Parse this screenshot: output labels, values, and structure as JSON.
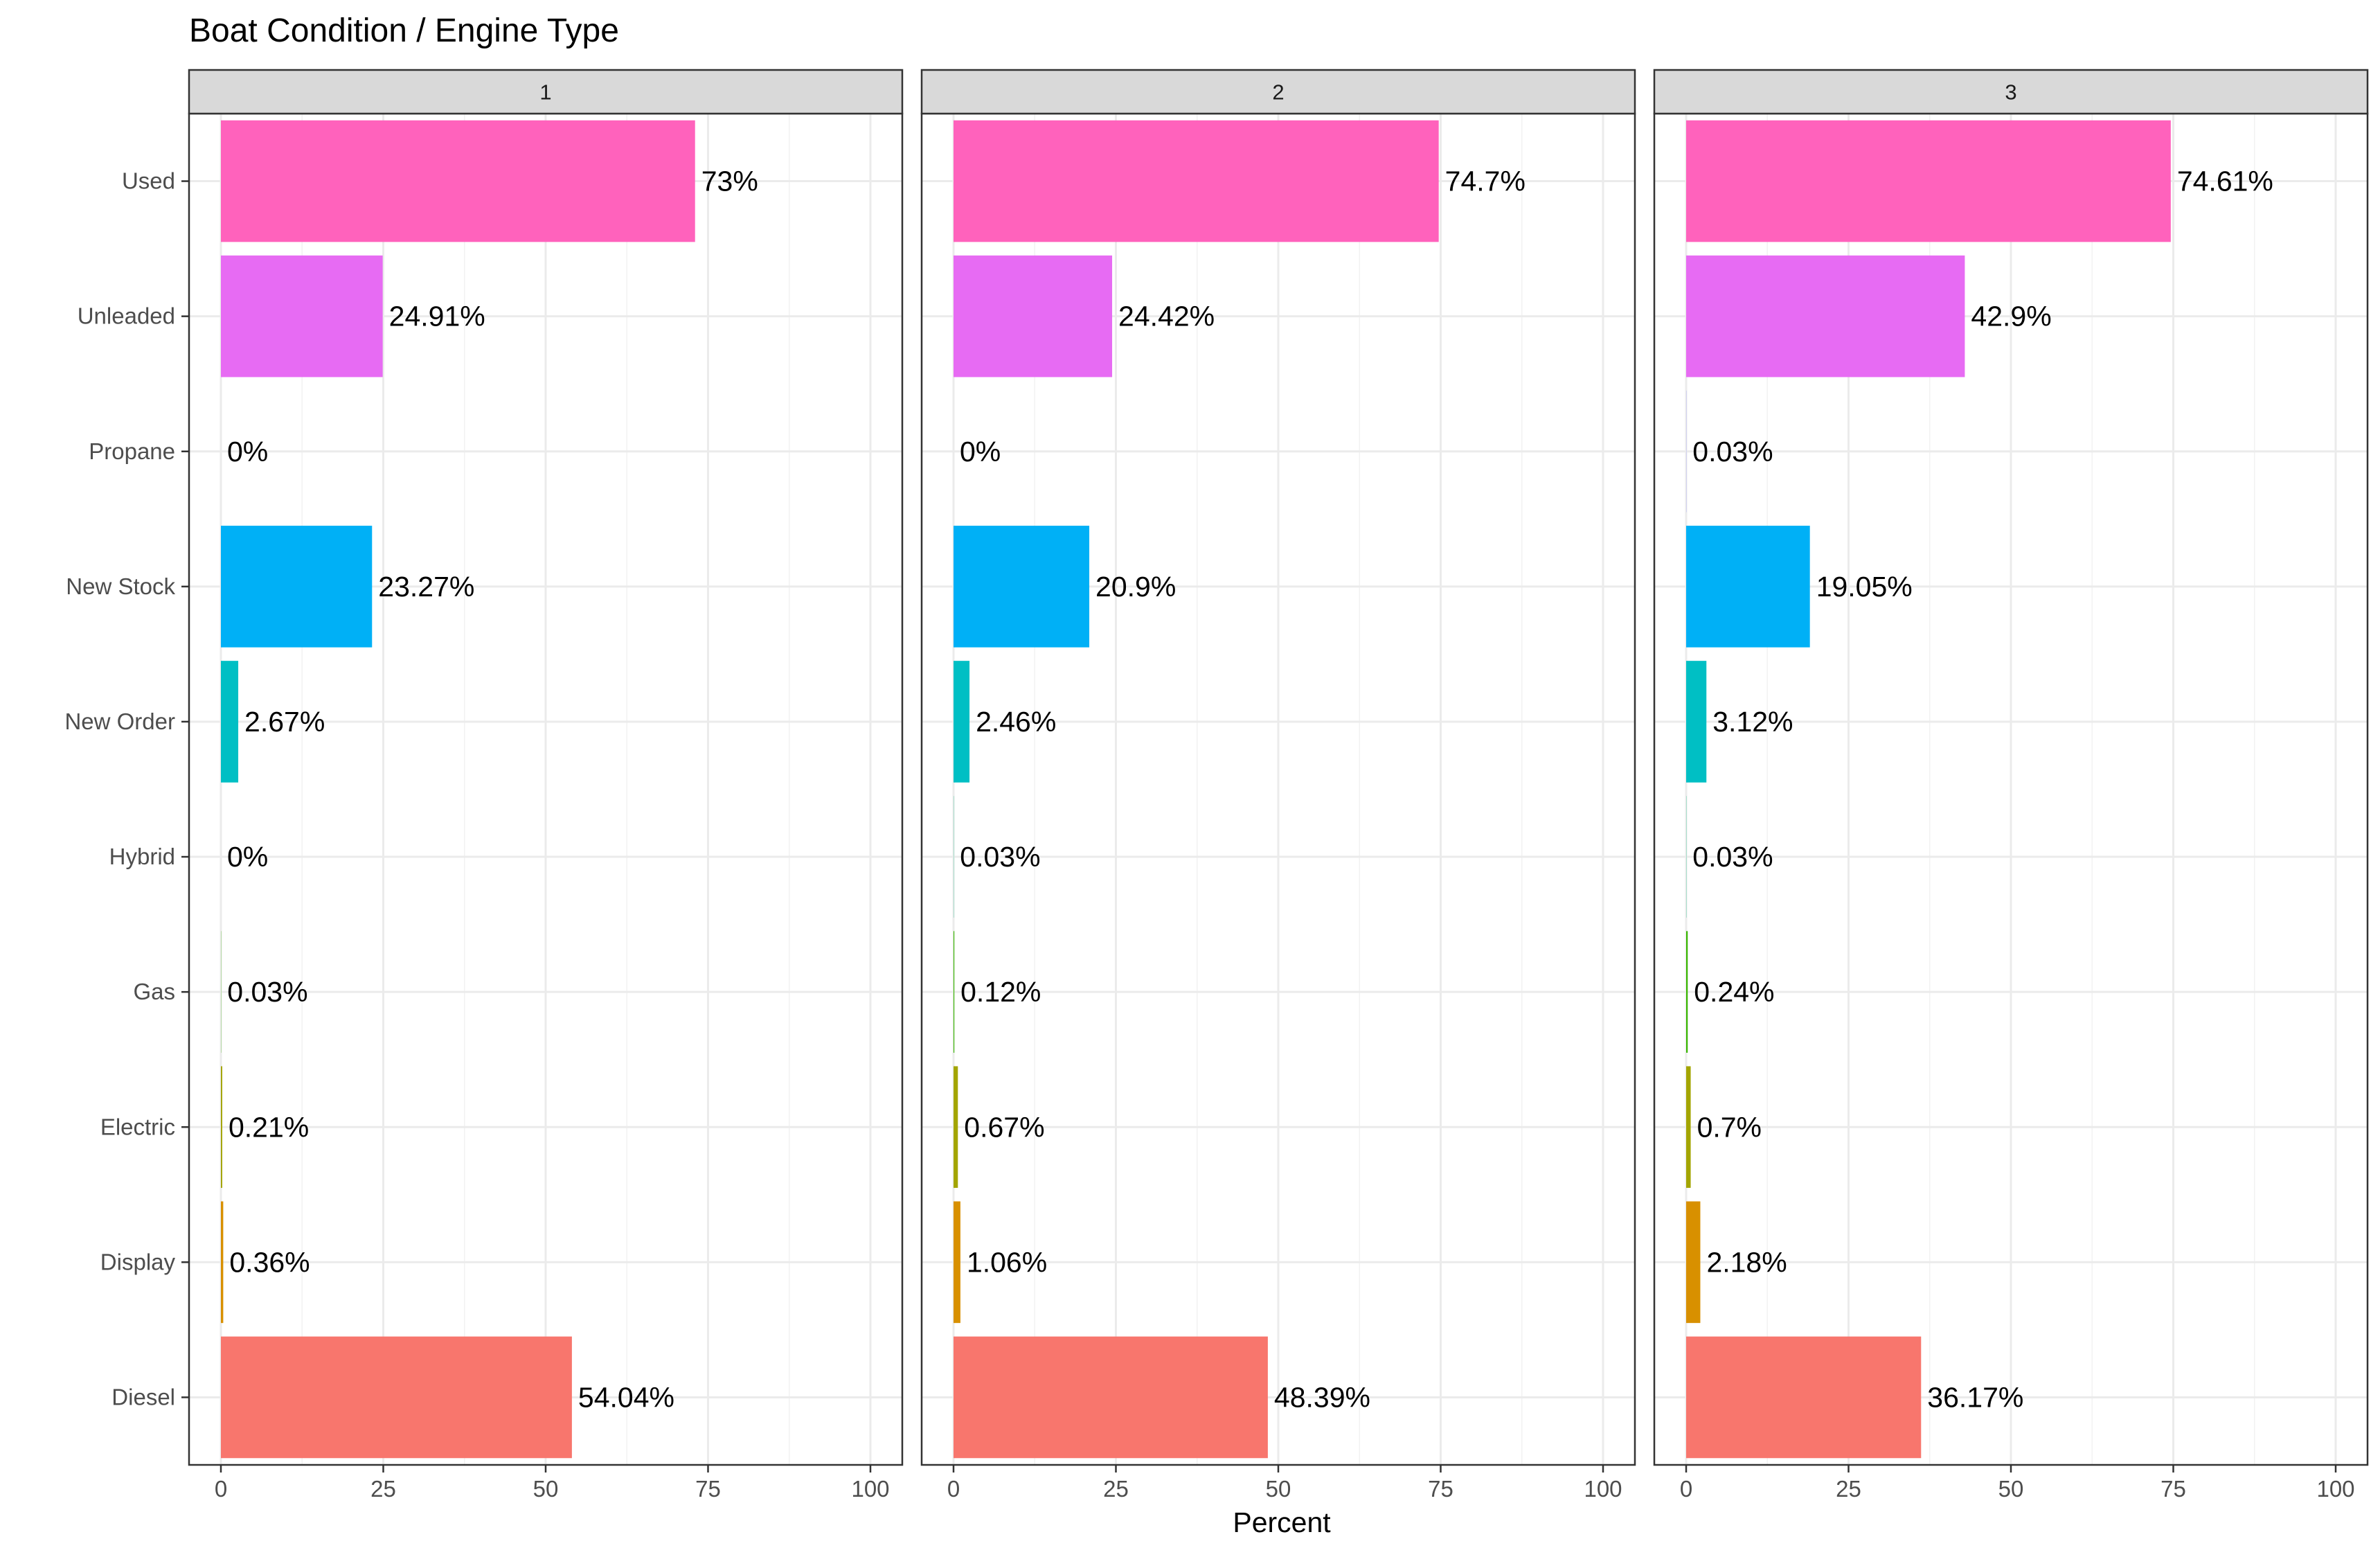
{
  "chart_data": {
    "type": "bar",
    "orientation": "horizontal",
    "title": "Boat Condition / Engine Type",
    "xlabel": "Percent",
    "ylabel": "",
    "xlim": [
      0,
      100
    ],
    "x_ticks": [
      0,
      25,
      50,
      75,
      100
    ],
    "grid": true,
    "legend": "none",
    "categories": [
      "Used",
      "Unleaded",
      "Propane",
      "New Stock",
      "New Order",
      "Hybrid",
      "Gas",
      "Electric",
      "Display",
      "Diesel"
    ],
    "colors": [
      "#FF62BC",
      "#E76BF3",
      "#9590FF",
      "#00B0F6",
      "#00BFC4",
      "#00BF7D",
      "#39B600",
      "#A3A500",
      "#D89000",
      "#F8766D"
    ],
    "panels": [
      {
        "label": "1",
        "values": [
          73,
          24.91,
          0,
          23.27,
          2.67,
          0,
          0.03,
          0.21,
          0.36,
          54.04
        ],
        "labels": [
          "73%",
          "24.91%",
          "0%",
          "23.27%",
          "2.67%",
          "0%",
          "0.03%",
          "0.21%",
          "0.36%",
          "54.04%"
        ]
      },
      {
        "label": "2",
        "values": [
          74.7,
          24.42,
          0,
          20.9,
          2.46,
          0.03,
          0.12,
          0.67,
          1.06,
          48.39
        ],
        "labels": [
          "74.7%",
          "24.42%",
          "0%",
          "20.9%",
          "2.46%",
          "0.03%",
          "0.12%",
          "0.67%",
          "1.06%",
          "48.39%"
        ]
      },
      {
        "label": "3",
        "values": [
          74.61,
          42.9,
          0.03,
          19.05,
          3.12,
          0.03,
          0.24,
          0.7,
          2.18,
          36.17
        ],
        "labels": [
          "74.61%",
          "42.9%",
          "0.03%",
          "19.05%",
          "3.12%",
          "0.03%",
          "0.24%",
          "0.7%",
          "2.18%",
          "36.17%"
        ]
      }
    ]
  }
}
